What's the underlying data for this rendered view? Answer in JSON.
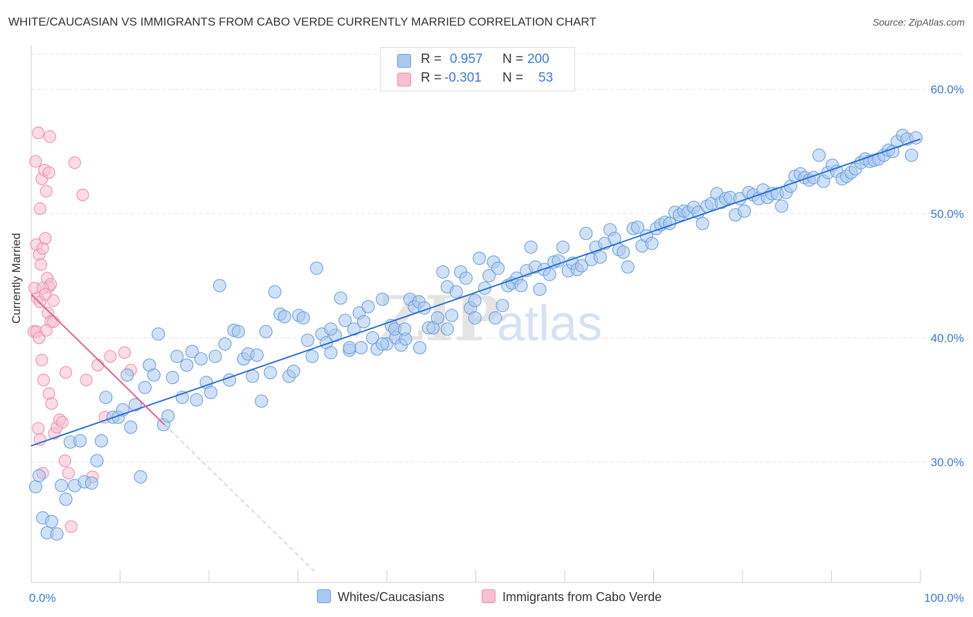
{
  "title": "WHITE/CAUCASIAN VS IMMIGRANTS FROM CABO VERDE CURRENTLY MARRIED CORRELATION CHART",
  "source": "Source: ZipAtlas.com",
  "watermark": {
    "zip": "ZIP",
    "atlas": "atlas"
  },
  "legend": {
    "r_label": "R =",
    "n_label": "N =",
    "series1": {
      "r": "0.957",
      "n": "200"
    },
    "series2": {
      "r": "-0.301",
      "n": "53"
    }
  },
  "colors": {
    "blue_fill": "#aac8f0",
    "blue_stroke": "#6a9fdc",
    "blue_line": "#2a6fd0",
    "pink_fill": "#f7bfd0",
    "pink_stroke": "#ee8fae",
    "pink_line": "#e0608e",
    "value_text": "#3a78d4",
    "grid": "#e3e3e3"
  },
  "chart_data": {
    "type": "scatter",
    "title": "WHITE/CAUCASIAN VS IMMIGRANTS FROM CABO VERDE CURRENTLY MARRIED CORRELATION CHART",
    "xlabel": "",
    "ylabel": "Currently Married",
    "xlim": [
      0,
      100
    ],
    "ylim": [
      20.3,
      63.3
    ],
    "x_ticks": [
      "0.0%",
      "100.0%"
    ],
    "y_ticks": [
      {
        "value": 30,
        "label": "30.0%"
      },
      {
        "value": 40,
        "label": "40.0%"
      },
      {
        "value": 50,
        "label": "50.0%"
      },
      {
        "value": 60,
        "label": "60.0%"
      }
    ],
    "grid": true,
    "legend_position": "bottom-center",
    "series": [
      {
        "name": "Whites/Caucasians",
        "r": 0.957,
        "n": 200,
        "trend": {
          "x": [
            0,
            100
          ],
          "y": [
            31.3,
            56.0
          ]
        },
        "points": [
          [
            0.5,
            28.0
          ],
          [
            0.9,
            28.9
          ],
          [
            1.3,
            25.5
          ],
          [
            1.8,
            24.3
          ],
          [
            2.3,
            25.2
          ],
          [
            2.9,
            24.2
          ],
          [
            3.4,
            28.1
          ],
          [
            3.9,
            27.0
          ],
          [
            4.4,
            31.6
          ],
          [
            4.9,
            28.1
          ],
          [
            5.5,
            31.7
          ],
          [
            6.0,
            28.4
          ],
          [
            6.8,
            28.3
          ],
          [
            7.4,
            30.1
          ],
          [
            7.9,
            31.7
          ],
          [
            8.4,
            35.2
          ],
          [
            9.2,
            33.6
          ],
          [
            9.8,
            33.6
          ],
          [
            10.3,
            34.2
          ],
          [
            10.8,
            37.0
          ],
          [
            11.2,
            32.8
          ],
          [
            11.7,
            34.6
          ],
          [
            12.3,
            28.8
          ],
          [
            12.8,
            36.0
          ],
          [
            13.3,
            37.8
          ],
          [
            13.8,
            37.0
          ],
          [
            14.3,
            40.3
          ],
          [
            14.9,
            33.0
          ],
          [
            15.4,
            33.7
          ],
          [
            15.9,
            36.8
          ],
          [
            16.4,
            38.5
          ],
          [
            17.0,
            35.2
          ],
          [
            17.5,
            37.8
          ],
          [
            18.1,
            38.9
          ],
          [
            18.6,
            35.0
          ],
          [
            19.1,
            38.3
          ],
          [
            19.7,
            36.4
          ],
          [
            20.2,
            35.6
          ],
          [
            20.7,
            38.5
          ],
          [
            21.2,
            44.2
          ],
          [
            21.8,
            39.5
          ],
          [
            22.3,
            36.6
          ],
          [
            22.8,
            40.6
          ],
          [
            23.3,
            40.5
          ],
          [
            23.9,
            38.3
          ],
          [
            24.4,
            38.7
          ],
          [
            24.9,
            36.9
          ],
          [
            25.4,
            38.6
          ],
          [
            25.9,
            34.9
          ],
          [
            26.4,
            40.5
          ],
          [
            26.9,
            37.2
          ],
          [
            27.4,
            43.7
          ],
          [
            28.0,
            41.9
          ],
          [
            28.5,
            41.7
          ],
          [
            29.0,
            36.9
          ],
          [
            29.5,
            37.3
          ],
          [
            30.1,
            41.8
          ],
          [
            30.6,
            41.6
          ],
          [
            31.1,
            39.8
          ],
          [
            31.6,
            38.5
          ],
          [
            32.1,
            45.6
          ],
          [
            32.7,
            40.3
          ],
          [
            33.2,
            39.6
          ],
          [
            33.7,
            38.8
          ],
          [
            34.2,
            40.2
          ],
          [
            34.8,
            43.2
          ],
          [
            35.3,
            41.4
          ],
          [
            35.8,
            39.0
          ],
          [
            36.3,
            40.7
          ],
          [
            36.9,
            42.0
          ],
          [
            37.4,
            41.3
          ],
          [
            37.9,
            42.5
          ],
          [
            38.4,
            40.0
          ],
          [
            38.9,
            39.1
          ],
          [
            39.5,
            43.1
          ],
          [
            40.0,
            39.5
          ],
          [
            40.5,
            41.0
          ],
          [
            41.0,
            40.0
          ],
          [
            41.6,
            39.4
          ],
          [
            42.1,
            39.9
          ],
          [
            42.6,
            43.1
          ],
          [
            43.1,
            42.5
          ],
          [
            43.6,
            42.9
          ],
          [
            44.2,
            42.4
          ],
          [
            44.7,
            40.8
          ],
          [
            45.2,
            40.8
          ],
          [
            45.7,
            41.6
          ],
          [
            46.3,
            45.3
          ],
          [
            46.8,
            44.1
          ],
          [
            47.3,
            41.8
          ],
          [
            47.8,
            43.7
          ],
          [
            48.3,
            45.3
          ],
          [
            48.9,
            44.8
          ],
          [
            49.4,
            42.4
          ],
          [
            49.9,
            43.0
          ],
          [
            50.4,
            46.4
          ],
          [
            51.0,
            44.0
          ],
          [
            51.5,
            45.0
          ],
          [
            52.0,
            46.1
          ],
          [
            52.5,
            45.6
          ],
          [
            53.0,
            42.6
          ],
          [
            53.6,
            44.2
          ],
          [
            54.1,
            44.4
          ],
          [
            54.6,
            44.8
          ],
          [
            55.1,
            44.2
          ],
          [
            55.7,
            45.4
          ],
          [
            56.2,
            47.3
          ],
          [
            56.7,
            45.7
          ],
          [
            57.2,
            43.9
          ],
          [
            57.7,
            45.5
          ],
          [
            58.3,
            45.1
          ],
          [
            58.8,
            46.1
          ],
          [
            59.3,
            46.2
          ],
          [
            59.8,
            47.3
          ],
          [
            60.4,
            45.4
          ],
          [
            60.9,
            46.0
          ],
          [
            61.4,
            45.5
          ],
          [
            61.9,
            45.8
          ],
          [
            62.4,
            48.4
          ],
          [
            63.0,
            46.3
          ],
          [
            63.5,
            47.3
          ],
          [
            64.0,
            46.5
          ],
          [
            64.5,
            47.6
          ],
          [
            65.1,
            48.7
          ],
          [
            65.6,
            48.0
          ],
          [
            66.1,
            47.1
          ],
          [
            66.6,
            46.9
          ],
          [
            67.1,
            45.7
          ],
          [
            67.7,
            48.8
          ],
          [
            68.2,
            48.9
          ],
          [
            68.7,
            47.4
          ],
          [
            69.2,
            48.2
          ],
          [
            69.8,
            47.6
          ],
          [
            70.3,
            48.8
          ],
          [
            70.8,
            49.1
          ],
          [
            71.3,
            49.3
          ],
          [
            71.8,
            49.2
          ],
          [
            72.4,
            50.1
          ],
          [
            72.9,
            49.9
          ],
          [
            73.4,
            50.2
          ],
          [
            73.9,
            50.1
          ],
          [
            74.5,
            50.5
          ],
          [
            75.0,
            50.1
          ],
          [
            75.5,
            49.2
          ],
          [
            76.0,
            50.6
          ],
          [
            76.5,
            50.8
          ],
          [
            77.1,
            51.6
          ],
          [
            77.6,
            50.9
          ],
          [
            78.1,
            51.2
          ],
          [
            78.6,
            51.3
          ],
          [
            79.2,
            49.9
          ],
          [
            79.7,
            51.2
          ],
          [
            80.2,
            50.2
          ],
          [
            80.7,
            51.7
          ],
          [
            81.2,
            51.5
          ],
          [
            81.8,
            51.2
          ],
          [
            82.3,
            51.9
          ],
          [
            82.8,
            51.3
          ],
          [
            83.3,
            51.6
          ],
          [
            83.9,
            51.6
          ],
          [
            84.4,
            50.6
          ],
          [
            84.9,
            51.7
          ],
          [
            85.4,
            52.2
          ],
          [
            85.9,
            53.0
          ],
          [
            86.5,
            53.2
          ],
          [
            87.0,
            52.9
          ],
          [
            87.5,
            52.7
          ],
          [
            88.0,
            52.9
          ],
          [
            88.6,
            54.7
          ],
          [
            89.1,
            52.6
          ],
          [
            89.6,
            53.3
          ],
          [
            90.1,
            53.9
          ],
          [
            90.6,
            53.4
          ],
          [
            91.2,
            52.8
          ],
          [
            91.7,
            53.0
          ],
          [
            92.2,
            53.3
          ],
          [
            92.7,
            53.6
          ],
          [
            93.3,
            54.1
          ],
          [
            93.8,
            54.4
          ],
          [
            94.3,
            54.2
          ],
          [
            94.8,
            54.3
          ],
          [
            95.3,
            54.4
          ],
          [
            95.9,
            54.7
          ],
          [
            96.4,
            55.1
          ],
          [
            96.9,
            55.0
          ],
          [
            97.4,
            55.8
          ],
          [
            98.0,
            56.3
          ],
          [
            98.5,
            56.0
          ],
          [
            99.0,
            54.7
          ],
          [
            99.5,
            56.1
          ],
          [
            40.9,
            40.7
          ],
          [
            33.7,
            40.7
          ],
          [
            46.8,
            40.7
          ],
          [
            49.9,
            41.6
          ],
          [
            52.2,
            41.6
          ],
          [
            37.1,
            39.2
          ],
          [
            35.8,
            39.2
          ],
          [
            43.7,
            39.2
          ],
          [
            42.0,
            40.7
          ],
          [
            39.5,
            39.5
          ]
        ]
      },
      {
        "name": "Immigrants from Cabo Verde",
        "r": -0.301,
        "n": 53,
        "trend": {
          "x": [
            0,
            15
          ],
          "y": [
            43.5,
            33.0
          ]
        },
        "trend_ext": {
          "x": [
            15,
            32
          ],
          "y": [
            33.0,
            21.1
          ]
        },
        "points": [
          [
            0.5,
            54.2
          ],
          [
            0.8,
            56.5
          ],
          [
            1.0,
            50.4
          ],
          [
            1.2,
            52.8
          ],
          [
            1.5,
            53.5
          ],
          [
            1.7,
            51.8
          ],
          [
            2.0,
            53.3
          ],
          [
            2.1,
            56.2
          ],
          [
            0.6,
            47.5
          ],
          [
            0.9,
            46.7
          ],
          [
            1.1,
            45.9
          ],
          [
            1.3,
            47.2
          ],
          [
            1.6,
            48.0
          ],
          [
            1.8,
            44.8
          ],
          [
            2.0,
            44.1
          ],
          [
            2.2,
            44.3
          ],
          [
            2.5,
            43.0
          ],
          [
            0.4,
            44.0
          ],
          [
            0.7,
            43.2
          ],
          [
            1.0,
            42.9
          ],
          [
            1.3,
            44.0
          ],
          [
            1.6,
            43.5
          ],
          [
            1.9,
            42.0
          ],
          [
            2.2,
            41.3
          ],
          [
            2.5,
            41.3
          ],
          [
            0.3,
            40.5
          ],
          [
            0.6,
            40.5
          ],
          [
            0.9,
            40.0
          ],
          [
            1.2,
            38.2
          ],
          [
            1.4,
            36.6
          ],
          [
            1.7,
            40.6
          ],
          [
            2.0,
            35.5
          ],
          [
            2.3,
            34.7
          ],
          [
            2.6,
            32.3
          ],
          [
            2.9,
            32.8
          ],
          [
            3.2,
            33.4
          ],
          [
            3.5,
            33.2
          ],
          [
            3.8,
            30.1
          ],
          [
            3.9,
            37.2
          ],
          [
            4.2,
            29.1
          ],
          [
            0.8,
            32.7
          ],
          [
            1.0,
            31.8
          ],
          [
            1.3,
            29.1
          ],
          [
            4.5,
            24.8
          ],
          [
            6.2,
            36.6
          ],
          [
            6.9,
            28.8
          ],
          [
            7.5,
            37.8
          ],
          [
            8.3,
            33.6
          ],
          [
            8.9,
            38.5
          ],
          [
            10.5,
            38.8
          ],
          [
            11.2,
            37.4
          ],
          [
            5.8,
            51.5
          ],
          [
            4.9,
            54.1
          ]
        ]
      }
    ]
  }
}
